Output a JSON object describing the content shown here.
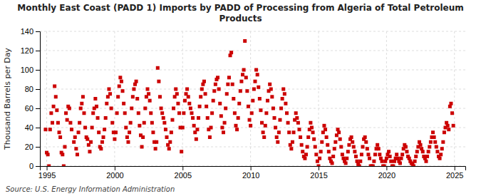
{
  "chart_data": {
    "type": "scatter",
    "title": "Monthly East Coast (PADD 1) Imports by PADD of Processing from Algeria of Total Petroleum\nProducts",
    "ylabel": "Thousand Barrels per Day",
    "annotations": [
      "Source: U.S. Energy Information Administration"
    ],
    "color": "#CC0000",
    "marker": "square",
    "grid": true,
    "xlim": [
      1994.5,
      2025.8
    ],
    "ylim": [
      0,
      140
    ],
    "xticks": [
      1995,
      2000,
      2005,
      2010,
      2015,
      2020,
      2025
    ],
    "yticks": [
      0,
      20,
      40,
      60,
      80,
      100,
      120,
      140
    ],
    "x": [
      1994.917,
      1995.0,
      1995.083,
      1995.167,
      1995.25,
      1995.333,
      1995.417,
      1995.5,
      1995.583,
      1995.667,
      1995.75,
      1995.833,
      1995.917,
      1996.0,
      1996.083,
      1996.167,
      1996.25,
      1996.333,
      1996.417,
      1996.5,
      1996.583,
      1996.667,
      1996.75,
      1996.833,
      1997.0,
      1997.083,
      1997.167,
      1997.25,
      1997.333,
      1997.417,
      1997.5,
      1997.583,
      1997.667,
      1997.75,
      1997.833,
      1997.917,
      1998.0,
      1998.083,
      1998.167,
      1998.25,
      1998.333,
      1998.417,
      1998.5,
      1998.583,
      1998.667,
      1998.75,
      1998.833,
      1998.917,
      1999.0,
      1999.083,
      1999.167,
      1999.25,
      1999.333,
      1999.417,
      1999.5,
      1999.583,
      1999.667,
      1999.75,
      1999.833,
      1999.917,
      2000.0,
      2000.083,
      2000.167,
      2000.25,
      2000.333,
      2000.417,
      2000.5,
      2000.583,
      2000.667,
      2000.75,
      2000.833,
      2000.917,
      2001.0,
      2001.083,
      2001.167,
      2001.25,
      2001.333,
      2001.417,
      2001.5,
      2001.583,
      2001.667,
      2001.75,
      2001.833,
      2001.917,
      2002.0,
      2002.083,
      2002.167,
      2002.25,
      2002.333,
      2002.417,
      2002.5,
      2002.583,
      2002.667,
      2002.75,
      2002.833,
      2002.917,
      2003.0,
      2003.083,
      2003.167,
      2003.25,
      2003.333,
      2003.417,
      2003.5,
      2003.583,
      2003.667,
      2003.75,
      2003.833,
      2003.917,
      2004.0,
      2004.083,
      2004.167,
      2004.25,
      2004.333,
      2004.417,
      2004.5,
      2004.583,
      2004.667,
      2004.75,
      2004.833,
      2004.917,
      2005.0,
      2005.083,
      2005.167,
      2005.25,
      2005.333,
      2005.417,
      2005.5,
      2005.583,
      2005.667,
      2005.75,
      2005.833,
      2005.917,
      2006.0,
      2006.083,
      2006.167,
      2006.25,
      2006.333,
      2006.417,
      2006.5,
      2006.583,
      2006.667,
      2006.75,
      2006.833,
      2006.917,
      2007.0,
      2007.083,
      2007.167,
      2007.25,
      2007.333,
      2007.417,
      2007.5,
      2007.583,
      2007.667,
      2007.75,
      2007.833,
      2007.917,
      2008.0,
      2008.083,
      2008.167,
      2008.25,
      2008.333,
      2008.417,
      2008.5,
      2008.583,
      2008.667,
      2008.75,
      2008.833,
      2008.917,
      2009.0,
      2009.083,
      2009.167,
      2009.25,
      2009.333,
      2009.417,
      2009.5,
      2009.583,
      2009.667,
      2009.75,
      2009.833,
      2009.917,
      2010.0,
      2010.083,
      2010.167,
      2010.25,
      2010.333,
      2010.417,
      2010.5,
      2010.583,
      2010.667,
      2010.75,
      2010.833,
      2010.917,
      2011.0,
      2011.083,
      2011.167,
      2011.25,
      2011.333,
      2011.417,
      2011.5,
      2011.583,
      2011.667,
      2011.75,
      2011.833,
      2011.917,
      2012.0,
      2012.083,
      2012.167,
      2012.25,
      2012.333,
      2012.417,
      2012.5,
      2012.583,
      2012.667,
      2012.75,
      2012.833,
      2012.917,
      2013.0,
      2013.083,
      2013.167,
      2013.25,
      2013.333,
      2013.417,
      2013.5,
      2013.583,
      2013.667,
      2013.75,
      2013.833,
      2013.917,
      2014.0,
      2014.083,
      2014.167,
      2014.25,
      2014.333,
      2014.417,
      2014.5,
      2014.583,
      2014.667,
      2014.75,
      2014.833,
      2014.917,
      2015.0,
      2015.083,
      2015.167,
      2015.25,
      2015.333,
      2015.417,
      2015.5,
      2015.583,
      2015.667,
      2015.75,
      2015.833,
      2015.917,
      2016.0,
      2016.083,
      2016.167,
      2016.25,
      2016.333,
      2016.417,
      2016.5,
      2016.583,
      2016.667,
      2016.75,
      2016.833,
      2016.917,
      2017.0,
      2017.083,
      2017.167,
      2017.25,
      2017.333,
      2017.417,
      2017.5,
      2017.583,
      2017.667,
      2017.75,
      2017.833,
      2017.917,
      2018.0,
      2018.083,
      2018.167,
      2018.25,
      2018.333,
      2018.417,
      2018.5,
      2018.583,
      2018.667,
      2018.75,
      2018.833,
      2018.917,
      2019.0,
      2019.083,
      2019.167,
      2019.25,
      2019.333,
      2019.417,
      2019.5,
      2019.583,
      2019.667,
      2019.75,
      2019.833,
      2019.917,
      2020.0,
      2020.083,
      2020.167,
      2020.25,
      2020.333,
      2020.417,
      2020.5,
      2020.583,
      2020.667,
      2020.75,
      2020.833,
      2020.917,
      2021.0,
      2021.083,
      2021.167,
      2021.25,
      2021.333,
      2021.417,
      2021.5,
      2021.583,
      2021.667,
      2021.75,
      2021.833,
      2021.917,
      2022.0,
      2022.083,
      2022.167,
      2022.25,
      2022.333,
      2022.417,
      2022.5,
      2022.583,
      2022.667,
      2022.75,
      2022.833,
      2022.917,
      2023.0,
      2023.083,
      2023.167,
      2023.25,
      2023.333,
      2023.417,
      2023.5,
      2023.583,
      2023.667,
      2023.75,
      2023.833,
      2023.917,
      2024.0,
      2024.083,
      2024.167,
      2024.25,
      2024.333,
      2024.417,
      2024.5,
      2024.583,
      2024.667,
      2024.75,
      2024.833,
      2024.917
    ],
    "values": [
      38,
      14,
      12,
      0,
      38,
      55,
      45,
      62,
      83,
      72,
      58,
      45,
      35,
      30,
      14,
      12,
      0,
      20,
      55,
      48,
      62,
      60,
      45,
      38,
      25,
      30,
      18,
      12,
      35,
      45,
      60,
      65,
      72,
      55,
      40,
      30,
      28,
      22,
      15,
      25,
      40,
      55,
      60,
      70,
      62,
      50,
      35,
      20,
      18,
      25,
      30,
      38,
      50,
      65,
      72,
      80,
      75,
      60,
      45,
      35,
      28,
      35,
      55,
      72,
      83,
      92,
      88,
      78,
      65,
      55,
      40,
      30,
      25,
      35,
      45,
      60,
      72,
      80,
      85,
      88,
      70,
      55,
      42,
      32,
      20,
      30,
      45,
      60,
      72,
      80,
      75,
      68,
      55,
      45,
      35,
      25,
      18,
      25,
      102,
      88,
      72,
      60,
      55,
      50,
      45,
      38,
      30,
      22,
      18,
      25,
      35,
      48,
      60,
      72,
      80,
      75,
      65,
      55,
      40,
      15,
      40,
      55,
      68,
      75,
      80,
      72,
      65,
      60,
      55,
      50,
      42,
      35,
      28,
      38,
      50,
      62,
      72,
      80,
      85,
      88,
      75,
      62,
      50,
      38,
      30,
      40,
      55,
      68,
      78,
      85,
      90,
      92,
      80,
      65,
      52,
      40,
      35,
      45,
      60,
      75,
      85,
      92,
      115,
      118,
      85,
      70,
      55,
      42,
      38,
      50,
      65,
      78,
      88,
      95,
      100,
      130,
      92,
      78,
      62,
      48,
      42,
      55,
      68,
      80,
      88,
      100,
      95,
      82,
      70,
      58,
      45,
      35,
      30,
      42,
      55,
      68,
      78,
      85,
      80,
      72,
      60,
      50,
      40,
      30,
      25,
      35,
      48,
      60,
      70,
      80,
      75,
      65,
      55,
      45,
      35,
      22,
      18,
      25,
      35,
      48,
      55,
      50,
      45,
      38,
      30,
      22,
      15,
      10,
      8,
      12,
      20,
      30,
      38,
      45,
      40,
      35,
      28,
      20,
      12,
      5,
      0,
      8,
      15,
      25,
      35,
      42,
      38,
      30,
      22,
      15,
      8,
      5,
      3,
      10,
      18,
      25,
      32,
      38,
      35,
      28,
      20,
      12,
      8,
      5,
      3,
      8,
      15,
      22,
      28,
      30,
      25,
      20,
      15,
      10,
      5,
      2,
      0,
      5,
      12,
      20,
      28,
      30,
      25,
      18,
      12,
      8,
      0,
      0,
      0,
      5,
      12,
      18,
      22,
      18,
      12,
      8,
      5,
      0,
      0,
      5,
      8,
      12,
      15,
      10,
      5,
      0,
      0,
      5,
      8,
      12,
      8,
      5,
      3,
      8,
      12,
      18,
      22,
      20,
      15,
      10,
      8,
      5,
      3,
      2,
      0,
      5,
      10,
      15,
      20,
      25,
      22,
      18,
      15,
      10,
      8,
      5,
      10,
      15,
      20,
      25,
      30,
      35,
      30,
      25,
      20,
      15,
      10,
      8,
      12,
      18,
      25,
      35,
      40,
      45,
      42,
      38,
      62,
      65,
      55,
      42
    ]
  }
}
